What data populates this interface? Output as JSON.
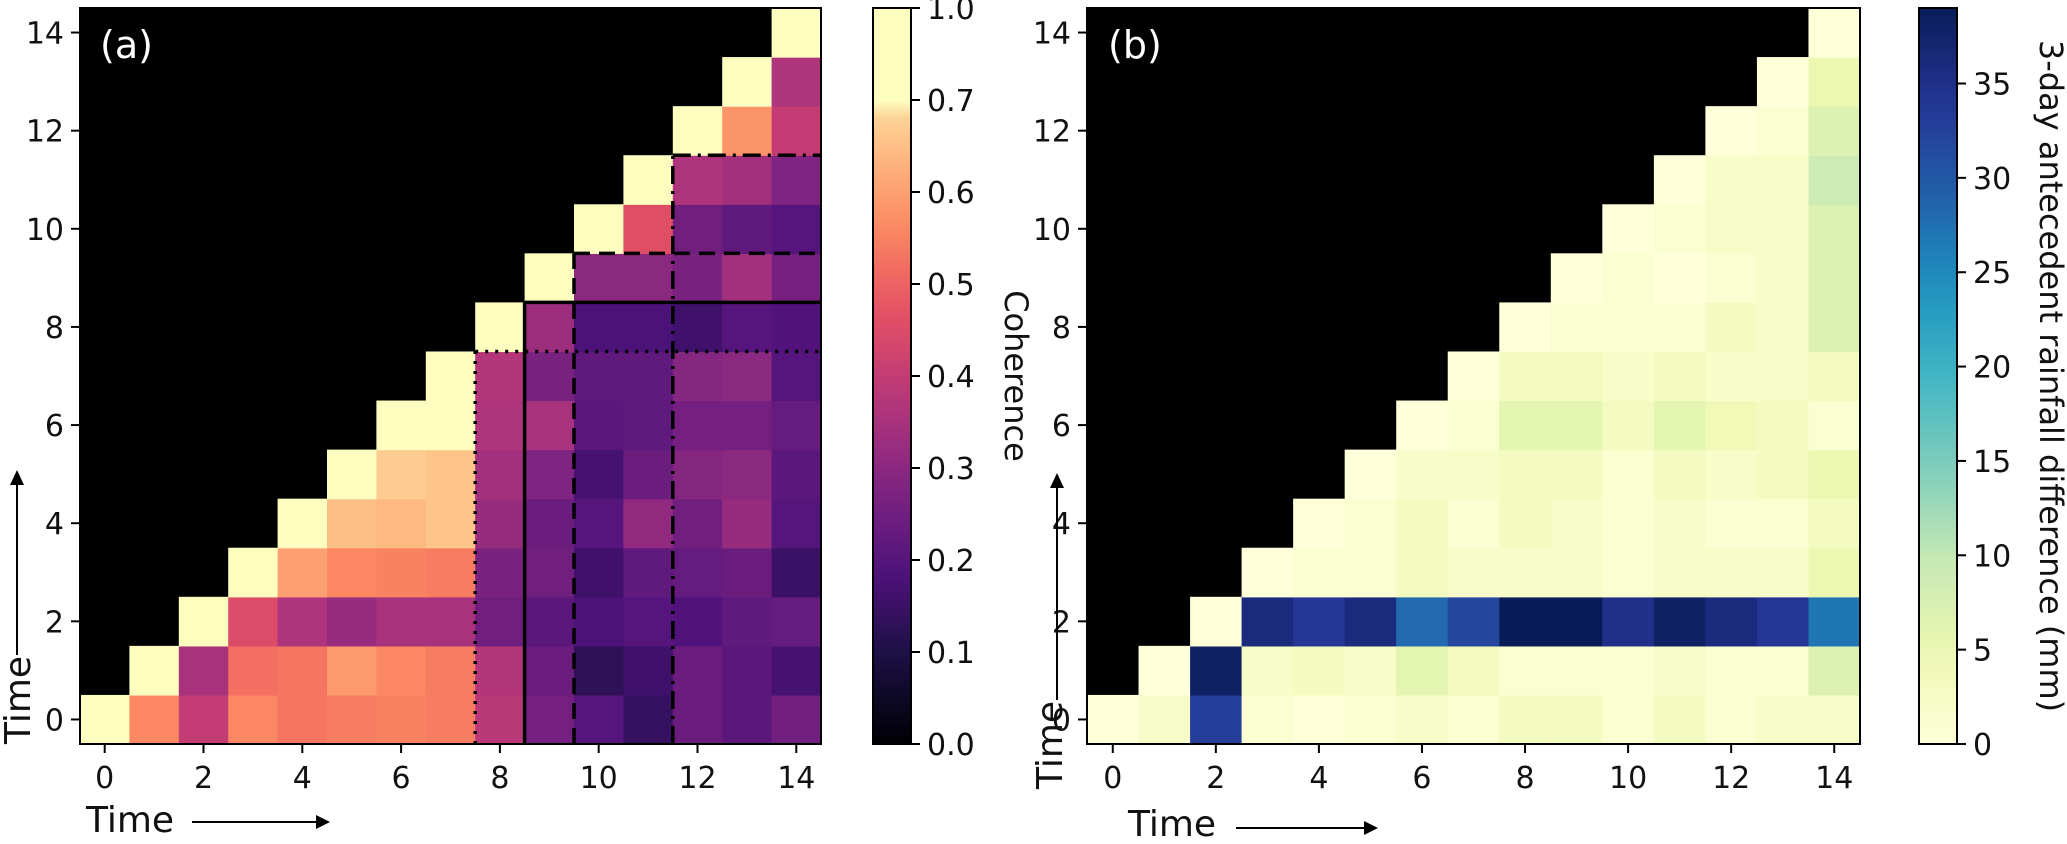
{
  "chart_data": [
    {
      "type": "heatmap",
      "panel_label": "(a)",
      "xlabel": "Time",
      "ylabel": "Time",
      "xticks": [
        0,
        2,
        4,
        6,
        8,
        10,
        12,
        14
      ],
      "yticks": [
        0,
        2,
        4,
        6,
        8,
        10,
        12,
        14
      ],
      "xlim": [
        -0.5,
        14.5
      ],
      "ylim": [
        -0.5,
        14.5
      ],
      "masked": "upper-left triangle (y > x) shown black",
      "colorbar": {
        "label": "Coherence",
        "colormap": "magma",
        "ticks": [
          "0.0",
          "0.1",
          "0.2",
          "0.3",
          "0.4",
          "0.5",
          "0.6",
          "0.7",
          "1.0"
        ],
        "tick_values": [
          0.0,
          0.1,
          0.2,
          0.3,
          0.4,
          0.5,
          0.6,
          0.7,
          1.0
        ],
        "note": "non-linear scale: 0.0-0.7 evenly spaced, 0.7-1.0 compressed at top"
      },
      "matrix_rows_y0_to_y14": [
        [
          1.0,
          0.56,
          0.4,
          0.56,
          0.53,
          0.54,
          0.55,
          0.54,
          0.38,
          0.26,
          0.2,
          0.14,
          0.24,
          0.21,
          0.25
        ],
        [
          null,
          1.0,
          0.35,
          0.52,
          0.53,
          0.59,
          0.56,
          0.54,
          0.37,
          0.24,
          0.13,
          0.16,
          0.24,
          0.21,
          0.17
        ],
        [
          null,
          null,
          1.0,
          0.45,
          0.36,
          0.32,
          0.35,
          0.35,
          0.25,
          0.21,
          0.18,
          0.2,
          0.19,
          0.22,
          0.23
        ],
        [
          null,
          null,
          null,
          1.0,
          0.6,
          0.56,
          0.55,
          0.54,
          0.27,
          0.25,
          0.16,
          0.22,
          0.23,
          0.24,
          0.15
        ],
        [
          null,
          null,
          null,
          null,
          1.0,
          0.65,
          0.64,
          0.66,
          0.32,
          0.24,
          0.2,
          0.31,
          0.25,
          0.32,
          0.2
        ],
        [
          null,
          null,
          null,
          null,
          null,
          1.0,
          0.67,
          0.66,
          0.34,
          0.28,
          0.17,
          0.24,
          0.29,
          0.3,
          0.21
        ],
        [
          null,
          null,
          null,
          null,
          null,
          null,
          1.0,
          0.7,
          0.36,
          0.35,
          0.21,
          0.22,
          0.26,
          0.26,
          0.23
        ],
        [
          null,
          null,
          null,
          null,
          null,
          null,
          null,
          1.0,
          0.37,
          0.27,
          0.22,
          0.22,
          0.29,
          0.3,
          0.2
        ],
        [
          null,
          null,
          null,
          null,
          null,
          null,
          null,
          null,
          1.0,
          0.33,
          0.18,
          0.18,
          0.16,
          0.2,
          0.19
        ],
        [
          null,
          null,
          null,
          null,
          null,
          null,
          null,
          null,
          null,
          1.0,
          0.3,
          0.3,
          0.27,
          0.34,
          0.26
        ],
        [
          null,
          null,
          null,
          null,
          null,
          null,
          null,
          null,
          null,
          null,
          1.0,
          0.46,
          0.25,
          0.22,
          0.2
        ],
        [
          null,
          null,
          null,
          null,
          null,
          null,
          null,
          null,
          null,
          null,
          null,
          1.0,
          0.36,
          0.34,
          0.28
        ],
        [
          null,
          null,
          null,
          null,
          null,
          null,
          null,
          null,
          null,
          null,
          null,
          null,
          1.0,
          0.58,
          0.4
        ],
        [
          null,
          null,
          null,
          null,
          null,
          null,
          null,
          null,
          null,
          null,
          null,
          null,
          null,
          1.0,
          0.36
        ],
        [
          null,
          null,
          null,
          null,
          null,
          null,
          null,
          null,
          null,
          null,
          null,
          null,
          null,
          null,
          1.0
        ]
      ],
      "annotation_lines": [
        {
          "style": "dotted",
          "at": 7.5,
          "x_from": 7.5,
          "x_to": 14.5
        },
        {
          "style": "solid",
          "at": 8.5,
          "x_from": 8.5,
          "x_to": 14.5
        },
        {
          "style": "dashed",
          "at": 9.5,
          "x_from": 9.5,
          "x_to": 14.5
        },
        {
          "style": "dashdot",
          "at": 11.5,
          "x_from": 11.5,
          "x_to": 14.5
        }
      ]
    },
    {
      "type": "heatmap",
      "panel_label": "(b)",
      "xlabel": "Time",
      "ylabel": "Time",
      "xticks": [
        0,
        2,
        4,
        6,
        8,
        10,
        12,
        14
      ],
      "yticks": [
        0,
        2,
        4,
        6,
        8,
        10,
        12,
        14
      ],
      "xlim": [
        -0.5,
        14.5
      ],
      "ylim": [
        -0.5,
        14.5
      ],
      "masked": "upper-left triangle (y > x) shown black",
      "colorbar": {
        "label": "3-day antecedent rainfall difference (mm)",
        "colormap": "YlGnBu",
        "range": [
          0,
          39
        ],
        "ticks": [
          "0",
          "5",
          "10",
          "15",
          "20",
          "25",
          "30",
          "35"
        ],
        "tick_values": [
          0,
          5,
          10,
          15,
          20,
          25,
          30,
          35
        ]
      },
      "matrix_rows_y0_to_y14": [
        [
          0,
          2,
          33,
          1,
          0,
          1,
          2,
          1,
          3,
          3,
          1,
          3,
          1,
          2,
          2
        ],
        [
          null,
          0,
          38,
          2,
          3,
          2,
          6,
          3,
          1,
          1,
          1,
          2,
          1,
          1,
          7
        ],
        [
          null,
          null,
          0,
          36,
          34,
          36,
          28,
          32,
          39,
          39,
          35,
          38,
          36,
          34,
          27
        ],
        [
          null,
          null,
          null,
          0,
          1,
          1,
          3,
          2,
          2,
          2,
          1,
          2,
          2,
          2,
          5
        ],
        [
          null,
          null,
          null,
          null,
          0,
          1,
          3,
          1,
          3,
          2,
          1,
          2,
          1,
          1,
          3
        ],
        [
          null,
          null,
          null,
          null,
          null,
          0,
          2,
          2,
          3,
          3,
          1,
          3,
          2,
          3,
          5
        ],
        [
          null,
          null,
          null,
          null,
          null,
          null,
          0,
          1,
          6,
          6,
          3,
          6,
          4,
          3,
          1
        ],
        [
          null,
          null,
          null,
          null,
          null,
          null,
          null,
          0,
          3,
          3,
          2,
          3,
          2,
          2,
          3
        ],
        [
          null,
          null,
          null,
          null,
          null,
          null,
          null,
          null,
          0,
          1,
          1,
          1,
          3,
          2,
          7
        ],
        [
          null,
          null,
          null,
          null,
          null,
          null,
          null,
          null,
          null,
          0,
          1,
          0,
          1,
          2,
          7
        ],
        [
          null,
          null,
          null,
          null,
          null,
          null,
          null,
          null,
          null,
          null,
          0,
          1,
          2,
          2,
          7
        ],
        [
          null,
          null,
          null,
          null,
          null,
          null,
          null,
          null,
          null,
          null,
          null,
          0,
          2,
          2,
          9
        ],
        [
          null,
          null,
          null,
          null,
          null,
          null,
          null,
          null,
          null,
          null,
          null,
          null,
          0,
          1,
          7
        ],
        [
          null,
          null,
          null,
          null,
          null,
          null,
          null,
          null,
          null,
          null,
          null,
          null,
          null,
          0,
          5
        ],
        [
          null,
          null,
          null,
          null,
          null,
          null,
          null,
          null,
          null,
          null,
          null,
          null,
          null,
          null,
          0
        ]
      ]
    }
  ]
}
